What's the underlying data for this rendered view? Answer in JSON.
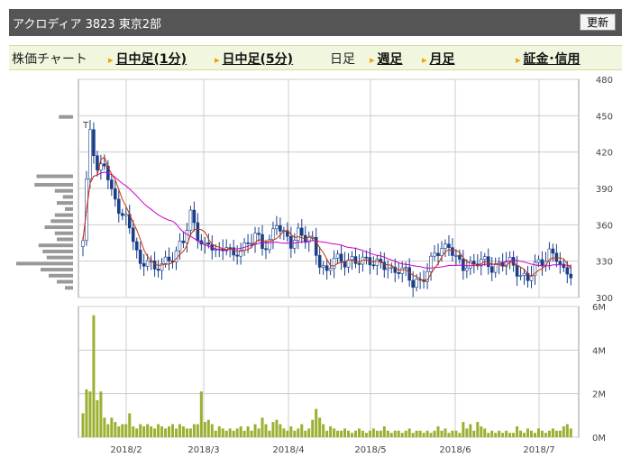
{
  "header": {
    "title": "アクロディア 3823 東京2部",
    "refresh_label": "更新"
  },
  "nav": {
    "label": "株価チャート",
    "intraday_1m": "日中足(1分)",
    "intraday_5m": "日中足(5分)",
    "daily": "日足",
    "weekly": "週足",
    "monthly": "月足",
    "margin": "証金･信用"
  },
  "colors": {
    "up": "#ffffff",
    "down": "#1a3f8a",
    "ma_short": "#cc3300",
    "ma_long": "#cc00cc",
    "volume": "#9ab030",
    "grid": "#cccccc"
  },
  "chart_data": {
    "type": "candlestick",
    "x_labels": [
      "2018/2",
      "2018/3",
      "2018/4",
      "2018/5",
      "2018/6",
      "2018/7"
    ],
    "price_axis": {
      "ticks": [
        480,
        450,
        420,
        390,
        360,
        330,
        300
      ],
      "ylim": [
        300,
        480
      ]
    },
    "volume_axis": {
      "ticks": [
        "6M",
        "4M",
        "2M",
        "0M"
      ],
      "ylim": [
        0,
        6
      ]
    },
    "marker": "T",
    "price_anchor_days": [
      0,
      2,
      4,
      6,
      8,
      10,
      12,
      14,
      16,
      18,
      20,
      22,
      24,
      26,
      28,
      30,
      32,
      34,
      36,
      38,
      40,
      42,
      44,
      46,
      48,
      50,
      52,
      54,
      56,
      58,
      60,
      62,
      64,
      66,
      68,
      70,
      72,
      74,
      76,
      78,
      80,
      82,
      84,
      86,
      88,
      90,
      92,
      94,
      96,
      98,
      100,
      102,
      104,
      106,
      108,
      110,
      112,
      114,
      116,
      118,
      120,
      122,
      124,
      126,
      128,
      130,
      132,
      134,
      136
    ],
    "price_anchor_values": [
      345,
      440,
      405,
      410,
      385,
      375,
      365,
      348,
      325,
      335,
      320,
      328,
      332,
      338,
      345,
      370,
      352,
      340,
      342,
      338,
      345,
      330,
      342,
      345,
      352,
      340,
      348,
      362,
      350,
      345,
      355,
      348,
      345,
      330,
      320,
      332,
      330,
      332,
      328,
      330,
      332,
      328,
      325,
      322,
      325,
      320,
      310,
      315,
      322,
      335,
      340,
      345,
      330,
      325,
      328,
      330,
      328,
      325,
      328,
      330,
      325,
      320,
      315,
      325,
      330,
      338,
      332,
      320,
      322
    ],
    "volume_values_m": [
      1.1,
      2.2,
      2.1,
      5.6,
      1.7,
      2.1,
      0.9,
      0.6,
      0.9,
      0.7,
      0.5,
      0.6,
      0.6,
      1.1,
      0.5,
      0.4,
      0.6,
      0.5,
      0.6,
      0.5,
      0.4,
      0.6,
      0.5,
      0.4,
      0.5,
      0.6,
      0.4,
      0.6,
      0.5,
      0.4,
      0.4,
      0.6,
      0.6,
      2.1,
      0.7,
      0.8,
      0.6,
      0.3,
      0.5,
      0.4,
      0.3,
      0.4,
      0.3,
      0.4,
      0.5,
      0.3,
      0.5,
      0.3,
      0.6,
      0.4,
      0.9,
      0.6,
      0.3,
      0.7,
      0.8,
      0.6,
      0.4,
      0.3,
      0.5,
      0.3,
      0.4,
      0.6,
      0.3,
      0.4,
      0.8,
      1.3,
      0.9,
      0.6,
      0.3,
      0.5,
      0.4,
      0.3,
      0.3,
      0.4,
      0.3,
      0.2,
      0.3,
      0.4,
      0.3,
      0.2,
      0.3,
      0.4,
      0.3,
      0.3,
      0.5,
      0.3,
      0.2,
      0.3,
      0.3,
      0.2,
      0.3,
      0.4,
      0.2,
      0.3,
      0.3,
      0.2,
      0.3,
      0.2,
      0.3,
      0.5,
      0.3,
      0.4,
      0.2,
      0.3,
      0.3,
      0.2,
      0.7,
      0.4,
      0.6,
      0.3,
      0.7,
      0.5,
      0.4,
      0.2,
      0.3,
      0.2,
      0.3,
      0.2,
      0.3,
      0.2,
      0.2,
      0.5,
      0.3,
      0.2,
      0.4,
      0.3,
      0.2,
      0.4,
      0.3,
      0.2,
      0.3,
      0.4,
      0.3,
      0.3,
      0.5,
      0.6,
      0.4
    ],
    "volume_profile": [
      {
        "price": 449,
        "size": 0.35
      },
      {
        "price": 400,
        "size": 0.9
      },
      {
        "price": 393,
        "size": 0.95
      },
      {
        "price": 388,
        "size": 0.45
      },
      {
        "price": 383,
        "size": 0.25
      },
      {
        "price": 378,
        "size": 0.4
      },
      {
        "price": 373,
        "size": 0.2
      },
      {
        "price": 368,
        "size": 0.45
      },
      {
        "price": 363,
        "size": 0.55
      },
      {
        "price": 358,
        "size": 0.7
      },
      {
        "price": 353,
        "size": 0.45
      },
      {
        "price": 348,
        "size": 0.4
      },
      {
        "price": 343,
        "size": 0.85
      },
      {
        "price": 338,
        "size": 0.75
      },
      {
        "price": 333,
        "size": 0.65
      },
      {
        "price": 328,
        "size": 1.4
      },
      {
        "price": 323,
        "size": 0.8
      },
      {
        "price": 318,
        "size": 0.6
      },
      {
        "price": 313,
        "size": 0.4
      },
      {
        "price": 308,
        "size": 0.2
      }
    ]
  }
}
